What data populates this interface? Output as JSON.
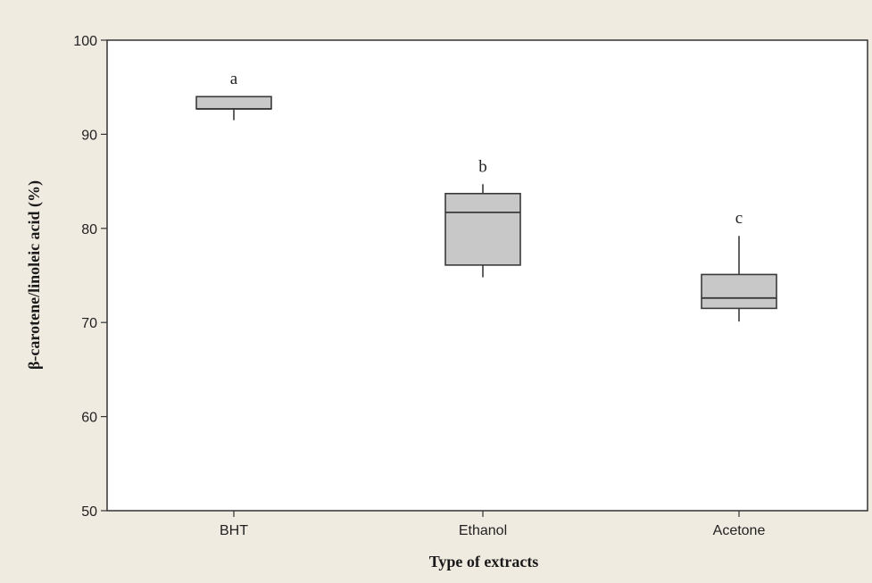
{
  "chart_data": {
    "type": "box",
    "title": "",
    "xlabel": "Type of extracts",
    "ylabel": "β-carotene/linoleic acid (%)",
    "ylim": [
      50,
      100
    ],
    "yticks": [
      50,
      60,
      70,
      80,
      90,
      100
    ],
    "grid": false,
    "categories": [
      "BHT",
      "Ethanol",
      "Acetone"
    ],
    "boxes": [
      {
        "category": "BHT",
        "min": 91.5,
        "q1": 92.7,
        "median": 92.7,
        "q3": 94.0,
        "max": 94.0,
        "letter": "a"
      },
      {
        "category": "Ethanol",
        "min": 74.8,
        "q1": 76.1,
        "median": 81.7,
        "q3": 83.7,
        "max": 84.7,
        "letter": "b"
      },
      {
        "category": "Acetone",
        "min": 70.1,
        "q1": 71.5,
        "median": 72.6,
        "q3": 75.1,
        "max": 79.2,
        "letter": "c"
      }
    ],
    "colors": {
      "box_fill": "#c8c8c8",
      "stroke": "#3a3a3a",
      "plot_background": "#ffffff",
      "page_background": "#f0ebe1"
    }
  }
}
